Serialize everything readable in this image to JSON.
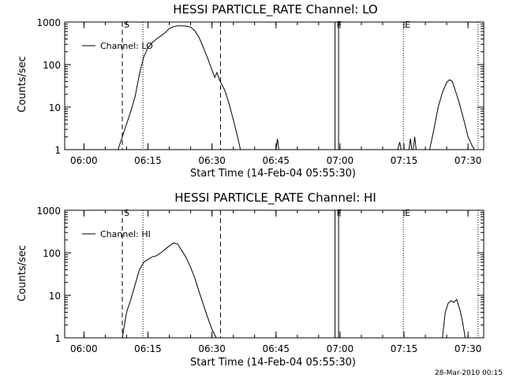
{
  "footer": {
    "timestamp": "28-Mar-2010 00:15"
  },
  "chart_data": [
    {
      "type": "line",
      "title": "HESSI PARTICLE_RATE Channel: LO",
      "xlabel": "Start Time (14-Feb-04 05:55:30)",
      "ylabel": "Counts/sec",
      "yscale": "log",
      "ylim": [
        1,
        1000
      ],
      "xlim": [
        "05:55:30",
        "07:33:40"
      ],
      "xticks": [
        "06:00",
        "06:15",
        "06:30",
        "06:45",
        "07:00",
        "07:15",
        "07:30"
      ],
      "yticks": [
        "1",
        "10",
        "100",
        "1000"
      ],
      "legend": {
        "label": "Channel: LO",
        "placement": "top-left"
      },
      "markers": [
        {
          "label": "S",
          "time": "06:09:00",
          "style": "dashed"
        },
        {
          "label": "",
          "time": "06:13:50",
          "style": "dotted"
        },
        {
          "label": "",
          "time": "06:32:00",
          "style": "dashed"
        },
        {
          "label": "F",
          "time": "06:58:50",
          "style": "solid"
        },
        {
          "label": "",
          "time": "06:59:40",
          "style": "solid"
        },
        {
          "label": "E",
          "time": "07:14:50",
          "style": "dotted"
        },
        {
          "label": "",
          "time": "07:32:20",
          "style": "dotted"
        }
      ],
      "series": [
        {
          "name": "Channel: LO",
          "segments": [
            [
              [
                "06:08:00",
                1
              ],
              [
                "06:09:00",
                2
              ],
              [
                "06:10:00",
                4
              ],
              [
                "06:11:00",
                8
              ],
              [
                "06:12:00",
                18
              ],
              [
                "06:13:00",
                60
              ],
              [
                "06:14:00",
                150
              ],
              [
                "06:15:00",
                250
              ],
              [
                "06:16:00",
                330
              ],
              [
                "06:17:00",
                400
              ],
              [
                "06:18:00",
                470
              ],
              [
                "06:19:00",
                560
              ],
              [
                "06:20:00",
                700
              ],
              [
                "06:21:00",
                780
              ],
              [
                "06:22:00",
                820
              ],
              [
                "06:23:00",
                820
              ],
              [
                "06:24:00",
                800
              ],
              [
                "06:25:00",
                760
              ],
              [
                "06:26:00",
                620
              ],
              [
                "06:27:00",
                430
              ],
              [
                "06:28:00",
                250
              ],
              [
                "06:29:00",
                140
              ],
              [
                "06:30:00",
                75
              ],
              [
                "06:30:40",
                50
              ],
              [
                "06:31:10",
                65
              ],
              [
                "06:31:50",
                42
              ],
              [
                "06:33:00",
                25
              ],
              [
                "06:34:00",
                12
              ],
              [
                "06:35:00",
                5
              ],
              [
                "06:36:00",
                2
              ],
              [
                "06:36:40",
                1
              ]
            ],
            [
              [
                "06:45:00",
                1
              ],
              [
                "06:45:20",
                1.8
              ],
              [
                "06:45:40",
                1
              ]
            ],
            [
              [
                "07:13:30",
                1
              ],
              [
                "07:14:00",
                1.5
              ],
              [
                "07:14:20",
                1
              ]
            ],
            [
              [
                "07:16:10",
                1
              ],
              [
                "07:16:30",
                1.8
              ],
              [
                "07:16:50",
                1
              ]
            ],
            [
              [
                "07:17:10",
                1
              ],
              [
                "07:17:30",
                2
              ],
              [
                "07:17:50",
                1
              ]
            ],
            [
              [
                "07:21:00",
                1
              ],
              [
                "07:22:00",
                3
              ],
              [
                "07:23:00",
                10
              ],
              [
                "07:24:00",
                22
              ],
              [
                "07:25:00",
                38
              ],
              [
                "07:25:40",
                44
              ],
              [
                "07:26:20",
                40
              ],
              [
                "07:27:00",
                25
              ],
              [
                "07:28:00",
                12
              ],
              [
                "07:29:00",
                5
              ],
              [
                "07:30:00",
                2
              ],
              [
                "07:31:00",
                1.2
              ],
              [
                "07:31:30",
                1
              ]
            ]
          ]
        }
      ]
    },
    {
      "type": "line",
      "title": "HESSI PARTICLE_RATE Channel: HI",
      "xlabel": "Start Time (14-Feb-04 05:55:30)",
      "ylabel": "Counts/sec",
      "yscale": "log",
      "ylim": [
        1,
        1000
      ],
      "xlim": [
        "05:55:30",
        "07:33:40"
      ],
      "xticks": [
        "06:00",
        "06:15",
        "06:30",
        "06:45",
        "07:00",
        "07:15",
        "07:30"
      ],
      "yticks": [
        "1",
        "10",
        "100",
        "1000"
      ],
      "legend": {
        "label": "Channel: HI",
        "placement": "top-left"
      },
      "markers": [
        {
          "label": "S",
          "time": "06:09:00",
          "style": "dashed"
        },
        {
          "label": "",
          "time": "06:13:50",
          "style": "dotted"
        },
        {
          "label": "",
          "time": "06:32:00",
          "style": "dashed"
        },
        {
          "label": "F",
          "time": "06:58:50",
          "style": "solid"
        },
        {
          "label": "",
          "time": "06:59:40",
          "style": "solid"
        },
        {
          "label": "E",
          "time": "07:14:50",
          "style": "dotted"
        },
        {
          "label": "",
          "time": "07:32:20",
          "style": "dotted"
        }
      ],
      "series": [
        {
          "name": "Channel: HI",
          "segments": [
            [
              [
                "06:09:00",
                1
              ],
              [
                "06:10:00",
                4
              ],
              [
                "06:11:00",
                8
              ],
              [
                "06:12:00",
                18
              ],
              [
                "06:13:00",
                40
              ],
              [
                "06:14:00",
                60
              ],
              [
                "06:15:00",
                70
              ],
              [
                "06:16:00",
                80
              ],
              [
                "06:17:00",
                85
              ],
              [
                "06:18:00",
                100
              ],
              [
                "06:19:00",
                120
              ],
              [
                "06:20:00",
                145
              ],
              [
                "06:21:00",
                170
              ],
              [
                "06:22:00",
                160
              ],
              [
                "06:23:00",
                110
              ],
              [
                "06:24:00",
                75
              ],
              [
                "06:25:00",
                45
              ],
              [
                "06:26:00",
                25
              ],
              [
                "06:27:00",
                12
              ],
              [
                "06:28:00",
                6
              ],
              [
                "06:29:00",
                3
              ],
              [
                "06:30:00",
                1.6
              ],
              [
                "06:31:00",
                1
              ]
            ],
            [
              [
                "07:24:00",
                1
              ],
              [
                "07:24:40",
                4
              ],
              [
                "07:25:20",
                6.5
              ],
              [
                "07:26:00",
                7.5
              ],
              [
                "07:26:40",
                6.8
              ],
              [
                "07:27:20",
                8
              ],
              [
                "07:28:00",
                5
              ],
              [
                "07:28:40",
                2.5
              ],
              [
                "07:29:20",
                1
              ]
            ]
          ]
        }
      ]
    }
  ]
}
